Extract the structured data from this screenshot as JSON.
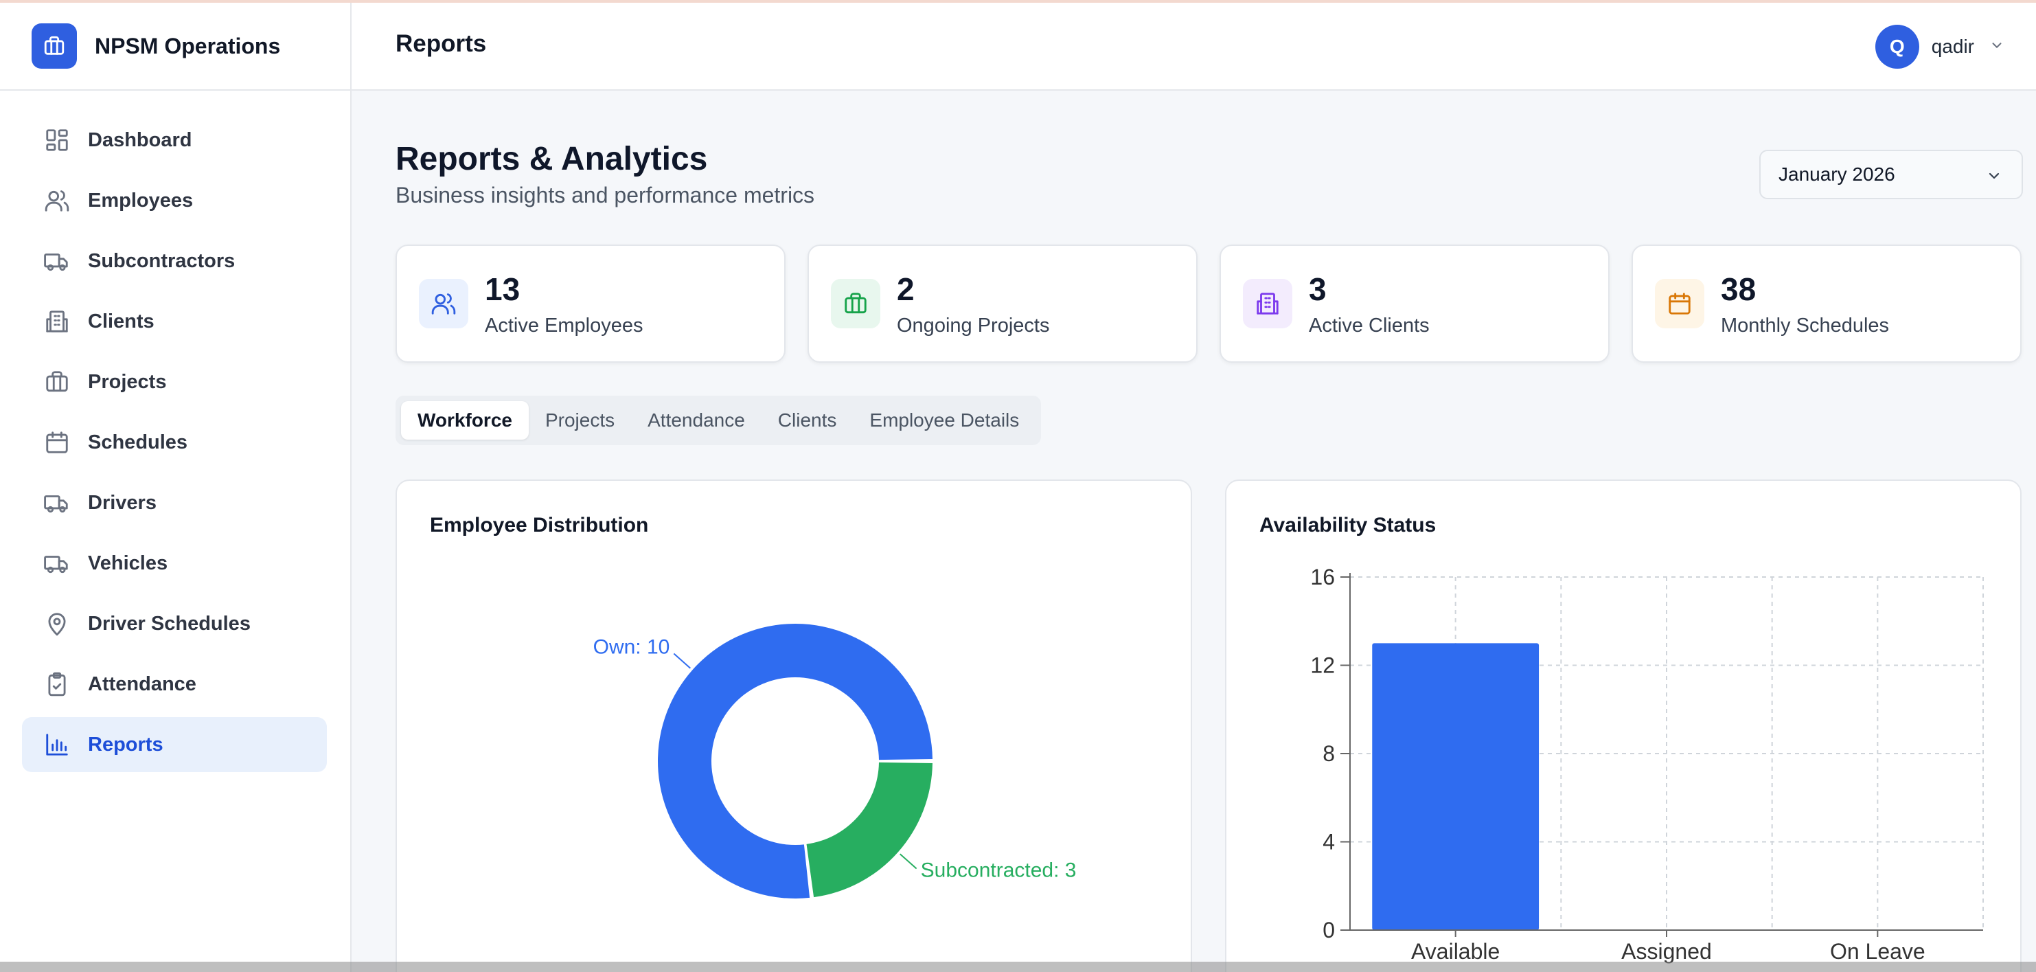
{
  "app": {
    "name": "NPSM Operations",
    "brand_color": "#2f5fe0"
  },
  "sidebar": {
    "items": [
      {
        "label": "Dashboard",
        "icon": "dashboard-icon",
        "active": false
      },
      {
        "label": "Employees",
        "icon": "users-icon",
        "active": false
      },
      {
        "label": "Subcontractors",
        "icon": "truck-icon",
        "active": false
      },
      {
        "label": "Clients",
        "icon": "building-icon",
        "active": false
      },
      {
        "label": "Projects",
        "icon": "briefcase-icon",
        "active": false
      },
      {
        "label": "Schedules",
        "icon": "calendar-icon",
        "active": false
      },
      {
        "label": "Drivers",
        "icon": "truck-icon",
        "active": false
      },
      {
        "label": "Vehicles",
        "icon": "truck-icon",
        "active": false
      },
      {
        "label": "Driver Schedules",
        "icon": "map-pin-icon",
        "active": false
      },
      {
        "label": "Attendance",
        "icon": "clipboard-check-icon",
        "active": false
      },
      {
        "label": "Reports",
        "icon": "bar-chart-icon",
        "active": true
      }
    ]
  },
  "header": {
    "title": "Reports",
    "user": {
      "initial": "Q",
      "name": "qadir"
    }
  },
  "page": {
    "title": "Reports & Analytics",
    "subtitle": "Business insights and performance metrics",
    "month": "January 2026"
  },
  "stats": [
    {
      "value": "13",
      "label": "Active Employees",
      "icon": "users-icon",
      "color": "#2f5fe0",
      "bg": "#eaf1fe"
    },
    {
      "value": "2",
      "label": "Ongoing Projects",
      "icon": "briefcase-icon",
      "color": "#16a34a",
      "bg": "#e8f7ee"
    },
    {
      "value": "3",
      "label": "Active Clients",
      "icon": "building-icon",
      "color": "#7c3aed",
      "bg": "#f3ecfd"
    },
    {
      "value": "38",
      "label": "Monthly Schedules",
      "icon": "calendar-icon",
      "color": "#d97706",
      "bg": "#fef5e6"
    }
  ],
  "tabs": [
    {
      "label": "Workforce",
      "active": true
    },
    {
      "label": "Projects",
      "active": false
    },
    {
      "label": "Attendance",
      "active": false
    },
    {
      "label": "Clients",
      "active": false
    },
    {
      "label": "Employee Details",
      "active": false
    }
  ],
  "charts": {
    "distribution_title": "Employee Distribution",
    "availability_title": "Availability Status"
  },
  "chart_data": [
    {
      "type": "pie",
      "title": "Employee Distribution",
      "donut": true,
      "slices": [
        {
          "name": "Own",
          "value": 10,
          "label": "Own: 10",
          "color": "#2f6cf0"
        },
        {
          "name": "Subcontracted",
          "value": 3,
          "label": "Subcontracted: 3",
          "color": "#27ae60"
        }
      ],
      "legend": "bottom"
    },
    {
      "type": "bar",
      "title": "Availability Status",
      "categories": [
        "Available",
        "Assigned",
        "On Leave"
      ],
      "values": [
        13,
        0,
        0
      ],
      "yticks": [
        "0",
        "4",
        "8",
        "12",
        "16"
      ],
      "ylim": [
        0,
        16
      ],
      "grid": true,
      "color": "#2f6cf0"
    }
  ]
}
